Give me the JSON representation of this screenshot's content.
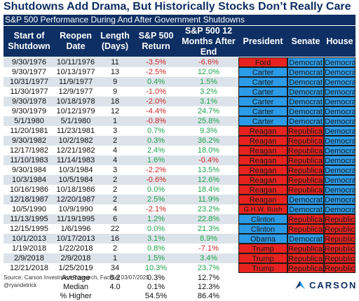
{
  "title": "Shutdowns Add Drama, But Historically Stocks Don’t Really Care",
  "subtitle": "S&P 500 Performance During And After Government Shutdowns",
  "headers": {
    "start": "Start of\nShutdown",
    "reopen": "Reopen\nDate",
    "length": "Length\n(Days)",
    "ret": "S&P 500\nReturn",
    "ret12": "S&P 500 12\nMonths After\nEnd",
    "president": "President",
    "senate": "Senate",
    "house": "House"
  },
  "colors": {
    "navy": "#0e2f63",
    "democrat": "#2b9be8",
    "republican": "#e8231f",
    "negative": "#d02626",
    "positive": "#1ea44d",
    "row_alt": "#dde3ea"
  },
  "rows": [
    {
      "start": "9/30/1976",
      "reopen": "10/11/1976",
      "length": "11",
      "ret": "-3.5%",
      "ret12": "-6.6%",
      "president": "Ford",
      "senate": "Democrat",
      "house": "Democrat",
      "pres_party": "R",
      "sen_party": "D",
      "house_party": "D"
    },
    {
      "start": "9/30/1977",
      "reopen": "10/13/1977",
      "length": "13",
      "ret": "-2.5%",
      "ret12": "12.0%",
      "president": "Carter",
      "senate": "Democrat",
      "house": "Democrat",
      "pres_party": "D",
      "sen_party": "D",
      "house_party": "D"
    },
    {
      "start": "10/31/1977",
      "reopen": "11/9/1977",
      "length": "9",
      "ret": "0.4%",
      "ret12": "1.5%",
      "president": "Carter",
      "senate": "Democrat",
      "house": "Democrat",
      "pres_party": "D",
      "sen_party": "D",
      "house_party": "D"
    },
    {
      "start": "11/30/1977",
      "reopen": "12/9/1977",
      "length": "9",
      "ret": "-1.0%",
      "ret12": "3.2%",
      "president": "Carter",
      "senate": "Democrat",
      "house": "Democrat",
      "pres_party": "D",
      "sen_party": "D",
      "house_party": "D"
    },
    {
      "start": "9/30/1978",
      "reopen": "10/18/1978",
      "length": "18",
      "ret": "-2.0%",
      "ret12": "3.1%",
      "president": "Carter",
      "senate": "Democrat",
      "house": "Democrat",
      "pres_party": "D",
      "sen_party": "D",
      "house_party": "D"
    },
    {
      "start": "9/30/1979",
      "reopen": "10/12/1979",
      "length": "12",
      "ret": "-4.4%",
      "ret12": "24.7%",
      "president": "Carter",
      "senate": "Democrat",
      "house": "Democrat",
      "pres_party": "D",
      "sen_party": "D",
      "house_party": "D"
    },
    {
      "start": "5/1/1980",
      "reopen": "5/1/1980",
      "length": "1",
      "ret": "-0.8%",
      "ret12": "25.8%",
      "president": "Carter",
      "senate": "Democrat",
      "house": "Democrat",
      "pres_party": "D",
      "sen_party": "D",
      "house_party": "D"
    },
    {
      "start": "11/20/1981",
      "reopen": "11/23/1981",
      "length": "3",
      "ret": "0.7%",
      "ret12": "9.3%",
      "president": "Reagan",
      "senate": "Republican",
      "house": "Democrat",
      "pres_party": "R",
      "sen_party": "R",
      "house_party": "D"
    },
    {
      "start": "9/30/1982",
      "reopen": "10/2/1982",
      "length": "2",
      "ret": "0.3%",
      "ret12": "36.2%",
      "president": "Reagan",
      "senate": "Republican",
      "house": "Democrat",
      "pres_party": "R",
      "sen_party": "R",
      "house_party": "D"
    },
    {
      "start": "12/17/1982",
      "reopen": "12/21/1982",
      "length": "4",
      "ret": "2.4%",
      "ret12": "18.0%",
      "president": "Reagan",
      "senate": "Republican",
      "house": "Democrat",
      "pres_party": "R",
      "sen_party": "R",
      "house_party": "D"
    },
    {
      "start": "11/10/1983",
      "reopen": "11/14/1983",
      "length": "4",
      "ret": "1.6%",
      "ret12": "-0.4%",
      "president": "Reagan",
      "senate": "Republican",
      "house": "Democrat",
      "pres_party": "R",
      "sen_party": "R",
      "house_party": "D"
    },
    {
      "start": "9/30/1984",
      "reopen": "10/3/1984",
      "length": "3",
      "ret": "-2.2%",
      "ret12": "13.5%",
      "president": "Reagan",
      "senate": "Republican",
      "house": "Democrat",
      "pres_party": "R",
      "sen_party": "R",
      "house_party": "D"
    },
    {
      "start": "10/3/1984",
      "reopen": "10/5/1984",
      "length": "2",
      "ret": "-0.6%",
      "ret12": "12.6%",
      "president": "Reagan",
      "senate": "Republican",
      "house": "Democrat",
      "pres_party": "R",
      "sen_party": "R",
      "house_party": "D"
    },
    {
      "start": "10/16/1986",
      "reopen": "10/18/1986",
      "length": "2",
      "ret": "0.0%",
      "ret12": "18.4%",
      "president": "Reagan",
      "senate": "Republican",
      "house": "Democrat",
      "pres_party": "R",
      "sen_party": "R",
      "house_party": "D"
    },
    {
      "start": "12/18/1987",
      "reopen": "12/20/1987",
      "length": "2",
      "ret": "2.5%",
      "ret12": "11.9%",
      "president": "Reagan",
      "senate": "Democrat",
      "house": "Democrat",
      "pres_party": "R",
      "sen_party": "D",
      "house_party": "D"
    },
    {
      "start": "10/5/1990",
      "reopen": "10/9/1990",
      "length": "4",
      "ret": "-2.1%",
      "ret12": "23.2%",
      "president": "G.H.W. Bush",
      "senate": "Democrat",
      "house": "Democrat",
      "pres_party": "R",
      "sen_party": "D",
      "house_party": "D"
    },
    {
      "start": "11/13/1995",
      "reopen": "11/19/1995",
      "length": "6",
      "ret": "1.2%",
      "ret12": "22.8%",
      "president": "Clinton",
      "senate": "Republican",
      "house": "Republican",
      "pres_party": "D",
      "sen_party": "R",
      "house_party": "R"
    },
    {
      "start": "12/15/1995",
      "reopen": "1/6/1996",
      "length": "22",
      "ret": "0.0%",
      "ret12": "21.3%",
      "president": "Clinton",
      "senate": "Republican",
      "house": "Republican",
      "pres_party": "D",
      "sen_party": "R",
      "house_party": "R"
    },
    {
      "start": "10/1/2013",
      "reopen": "10/17/2013",
      "length": "16",
      "ret": "3.1%",
      "ret12": "8.9%",
      "president": "Obama",
      "senate": "Democrat",
      "house": "Republican",
      "pres_party": "D",
      "sen_party": "D",
      "house_party": "R"
    },
    {
      "start": "1/19/2018",
      "reopen": "1/22/2018",
      "length": "2",
      "ret": "0.8%",
      "ret12": "-7.1%",
      "president": "Trump",
      "senate": "Republican",
      "house": "Republican",
      "pres_party": "R",
      "sen_party": "R",
      "house_party": "R"
    },
    {
      "start": "2/9/2018",
      "reopen": "2/9/2018",
      "length": "1",
      "ret": "1.5%",
      "ret12": "3.4%",
      "president": "Trump",
      "senate": "Republican",
      "house": "Republican",
      "pres_party": "R",
      "sen_party": "R",
      "house_party": "R"
    },
    {
      "start": "12/21/2018",
      "reopen": "1/25/2019",
      "length": "34",
      "ret": "10.3%",
      "ret12": "23.7%",
      "president": "Trump",
      "senate": "Republican",
      "house": "Republican",
      "pres_party": "R",
      "sen_party": "R",
      "house_party": "R"
    }
  ],
  "summary": [
    {
      "label": "Average",
      "length": "8.2",
      "ret": "0.3%",
      "ret12": "12.7%"
    },
    {
      "label": "Median",
      "length": "4.0",
      "ret": "0.1%",
      "ret12": "12.3%"
    },
    {
      "label": "% Higher",
      "length": "",
      "ret": "54.5%",
      "ret12": "86.4%"
    }
  ],
  "footer": {
    "source": "Source: Carson Investment Research, FactSet 03/07/2025",
    "handle": "@ryandetrick"
  },
  "logo": {
    "text": "CARSON"
  }
}
